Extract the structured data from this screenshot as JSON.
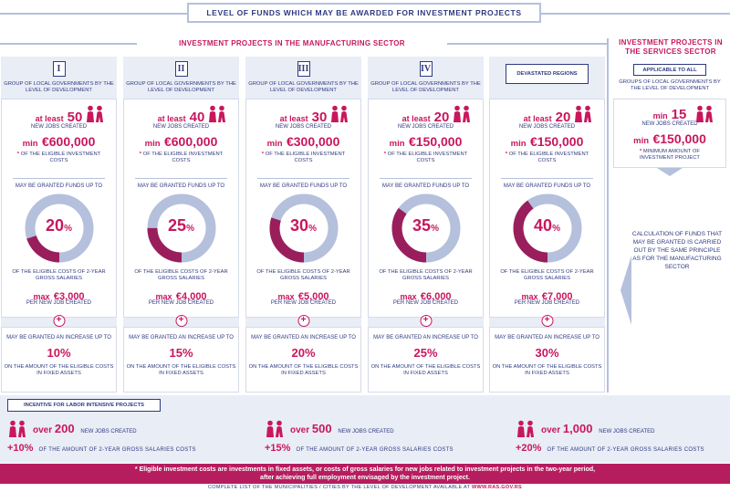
{
  "title": "LEVEL OF FUNDS WHICH MAY BE AWARDED FOR INVESTMENT PROJECTS",
  "manufacturing_heading": "INVESTMENT PROJECTS IN THE MANUFACTURING SECTOR",
  "services_heading": "INVESTMENT PROJECTS IN THE SERVICES SECTOR",
  "colors": {
    "accent": "#c8175d",
    "navy": "#2f3a80",
    "ring": "#b5c0dc",
    "fill": "#9a1e5c"
  },
  "columns": [
    {
      "badge": "I",
      "group": "GROUP OF LOCAL GOVERNMENTS BY THE LEVEL OF DEVELOPMENT",
      "at_least": "at least",
      "jobs": "50",
      "jobs_label": "NEW JOBS CREATED",
      "min_prefix": "min",
      "min_amount": "€600,000",
      "note_star": "*",
      "note": "OF THE ELIGIBLE INVESTMENT COSTS",
      "granted": "MAY BE GRANTED FUNDS UP TO",
      "percent_num": "20",
      "percent_sign": "%",
      "percent": 20,
      "eligible": "OF THE ELIGIBLE COSTS OF 2-YEAR GROSS SALARIES",
      "max_prefix": "max",
      "max_amount": "€3,000",
      "per_job": "PER NEW JOB CREATED",
      "plus": "+",
      "increase_label": "MAY BE GRANTED AN INCREASE UP TO",
      "increase": "10%",
      "increase_note": "ON THE AMOUNT OF THE ELIGIBLE COSTS IN FIXED ASSETS"
    },
    {
      "badge": "II",
      "group": "GROUP OF LOCAL GOVERNMENTS BY THE LEVEL OF DEVELOPMENT",
      "at_least": "at least",
      "jobs": "40",
      "jobs_label": "NEW JOBS CREATED",
      "min_prefix": "min",
      "min_amount": "€600,000",
      "note_star": "*",
      "note": "OF THE ELIGIBLE INVESTMENT COSTS",
      "granted": "MAY BE GRANTED FUNDS UP TO",
      "percent_num": "25",
      "percent_sign": "%",
      "percent": 25,
      "eligible": "OF THE ELIGIBLE COSTS OF 2-YEAR GROSS SALARIES",
      "max_prefix": "max",
      "max_amount": "€4,000",
      "per_job": "PER NEW JOB CREATED",
      "plus": "+",
      "increase_label": "MAY BE GRANTED AN INCREASE UP TO",
      "increase": "15%",
      "increase_note": "ON THE AMOUNT OF THE ELIGIBLE COSTS IN FIXED ASSETS"
    },
    {
      "badge": "III",
      "group": "GROUP OF LOCAL GOVERNMENTS BY THE LEVEL OF DEVELOPMENT",
      "at_least": "at least",
      "jobs": "30",
      "jobs_label": "NEW JOBS CREATED",
      "min_prefix": "min",
      "min_amount": "€300,000",
      "note_star": "*",
      "note": "OF THE ELIGIBLE INVESTMENT COSTS",
      "granted": "MAY BE GRANTED FUNDS UP TO",
      "percent_num": "30",
      "percent_sign": "%",
      "percent": 30,
      "eligible": "OF THE ELIGIBLE COSTS OF 2-YEAR GROSS SALARIES",
      "max_prefix": "max",
      "max_amount": "€5,000",
      "per_job": "PER NEW JOB CREATED",
      "plus": "+",
      "increase_label": "MAY BE GRANTED AN INCREASE UP TO",
      "increase": "20%",
      "increase_note": "ON THE AMOUNT OF THE ELIGIBLE COSTS IN FIXED ASSETS"
    },
    {
      "badge": "IV",
      "group": "GROUP OF LOCAL GOVERNMENTS BY THE LEVEL OF DEVELOPMENT",
      "at_least": "at least",
      "jobs": "20",
      "jobs_label": "NEW JOBS CREATED",
      "min_prefix": "min",
      "min_amount": "€150,000",
      "note_star": "*",
      "note": "OF THE ELIGIBLE INVESTMENT COSTS",
      "granted": "MAY BE GRANTED FUNDS UP TO",
      "percent_num": "35",
      "percent_sign": "%",
      "percent": 35,
      "eligible": "OF THE ELIGIBLE COSTS OF 2-YEAR GROSS SALARIES",
      "max_prefix": "max",
      "max_amount": "€6,000",
      "per_job": "PER NEW JOB CREATED",
      "plus": "+",
      "increase_label": "MAY BE GRANTED AN INCREASE UP TO",
      "increase": "25%",
      "increase_note": "ON THE AMOUNT OF THE ELIGIBLE COSTS IN FIXED ASSETS"
    },
    {
      "badge": "DEVASTATED REGIONS",
      "group": "",
      "at_least": "at least",
      "jobs": "20",
      "jobs_label": "NEW JOBS CREATED",
      "min_prefix": "min",
      "min_amount": "€150,000",
      "note_star": "*",
      "note": "OF THE ELIGIBLE INVESTMENT COSTS",
      "granted": "MAY BE GRANTED FUNDS UP TO",
      "percent_num": "40",
      "percent_sign": "%",
      "percent": 40,
      "eligible": "OF THE ELIGIBLE COSTS OF 2-YEAR GROSS SALARIES",
      "max_prefix": "max",
      "max_amount": "€7,000",
      "per_job": "PER NEW JOB CREATED",
      "plus": "+",
      "increase_label": "MAY BE GRANTED AN INCREASE UP TO",
      "increase": "30%",
      "increase_note": "ON THE AMOUNT OF THE ELIGIBLE COSTS IN FIXED ASSETS"
    }
  ],
  "services": {
    "applicable": "APPLICABLE TO ALL",
    "group": "GROUPS OF LOCAL GOVERNMENTS BY THE LEVEL OF DEVELOPMENT",
    "min_prefix": "min",
    "jobs": "15",
    "jobs_label": "NEW JOBS CREATED",
    "min_amount": "€150,000",
    "note_star": "*",
    "note": "MINIMUM AMOUNT OF INVESTMENT PROJECT",
    "calc": "CALCULATION OF FUNDS THAT MAY BE GRANTED IS CARRIED OUT BY THE SAME PRINCIPLE AS FOR THE MANUFACTURING SECTOR"
  },
  "labor": {
    "title": "INCENTIVE FOR LABOR INTENSIVE PROJECTS",
    "items": [
      {
        "over": "over",
        "count": "200",
        "label": "NEW JOBS CREATED",
        "pct": "+10%",
        "pct_label": "OF THE AMOUNT OF 2-YEAR GROSS SALARIES COSTS"
      },
      {
        "over": "over",
        "count": "500",
        "label": "NEW JOBS CREATED",
        "pct": "+15%",
        "pct_label": "OF THE AMOUNT OF 2-YEAR GROSS SALARIES COSTS"
      },
      {
        "over": "over",
        "count": "1,000",
        "label": "NEW JOBS CREATED",
        "pct": "+20%",
        "pct_label": "OF THE AMOUNT OF 2-YEAR GROSS SALARIES COSTS"
      }
    ]
  },
  "footer": {
    "star": "*",
    "line1": "Eligible investment costs are investments in fixed assets, or costs of gross salaries for new jobs related to investment projects in the two-year period,",
    "line2": "after achieving full employment envisaged by the investment project.",
    "note": "COMPLETE LIST OF THE MUNICIPALITIES / CITIES BY THE  LEVEL OF DEVELOPMENT AVAILABLE AT",
    "link": "WWW.RAS.GOV.RS"
  }
}
